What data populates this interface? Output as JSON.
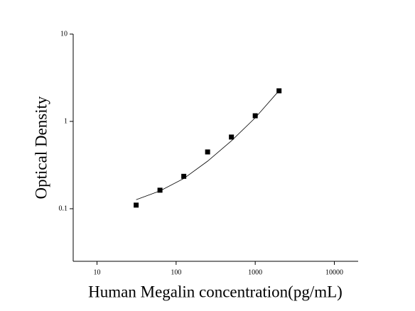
{
  "chart_data": {
    "type": "scatter",
    "x_label": "Human Megalin concentration(pg/mL)",
    "y_label": "Optical Density",
    "xlog": true,
    "ylog": true,
    "xlim": [
      5,
      20000
    ],
    "ylim": [
      0.025,
      10
    ],
    "xticks": [
      10,
      100,
      1000,
      10000
    ],
    "yticks": [
      0.1,
      1,
      10
    ],
    "series": [
      {
        "color": "#000000",
        "x": [
          31.25,
          62.5,
          125,
          250,
          500,
          1000,
          2000
        ],
        "values": [
          0.11,
          0.163,
          0.235,
          0.447,
          0.662,
          1.16,
          2.24
        ]
      }
    ],
    "fit": {
      "color": "#000000",
      "x": [
        31.25,
        62.5,
        125,
        250,
        500,
        1000,
        2000
      ],
      "values": [
        0.127,
        0.16,
        0.222,
        0.35,
        0.6,
        1.1,
        2.25
      ]
    }
  }
}
